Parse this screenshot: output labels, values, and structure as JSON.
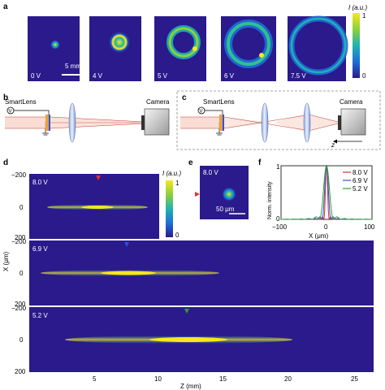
{
  "panel_a": {
    "letter": "a",
    "colorbar": {
      "label": "I (a.u.)",
      "max_tick": "1",
      "min_tick": "0"
    },
    "beam_frames": [
      {
        "voltage": "0 V"
      },
      {
        "voltage": "4 V"
      },
      {
        "voltage": "5 V"
      },
      {
        "voltage": "6 V"
      },
      {
        "voltage": "7.5 V"
      }
    ],
    "scalebar_label": "5 mm"
  },
  "panel_b": {
    "letter": "b",
    "lens_label": "SmartLens",
    "camera_label": "Camera",
    "source_symbol": "V"
  },
  "panel_c": {
    "letter": "c",
    "lens_label": "SmartLens",
    "camera_label": "Camera",
    "axis_label": "z",
    "source_symbol": "V"
  },
  "panel_d": {
    "letter": "d",
    "colorbar": {
      "label": "I (a.u.)",
      "max_tick": "1",
      "min_tick": "0"
    },
    "x_axis_label": "X (μm)",
    "z_axis_label": "Z (mm)",
    "z_ticks": [
      "5",
      "10",
      "15",
      "20",
      "25"
    ],
    "x_ticks": [
      "−200",
      "0",
      "200"
    ],
    "rows": [
      {
        "voltage": "8.0 V",
        "marker_color": "#e03030"
      },
      {
        "voltage": "6.9 V",
        "marker_color": "#3050e0"
      },
      {
        "voltage": "5.2 V",
        "marker_color": "#30a030"
      }
    ]
  },
  "panel_e": {
    "letter": "e",
    "voltage": "8.0 V",
    "scalebar_label": "50 μm",
    "marker_color": "#e03030"
  },
  "panel_f": {
    "letter": "f",
    "chart_data": {
      "type": "line",
      "title": "",
      "xlabel": "X (μm)",
      "ylabel": "Norm. intensity",
      "xlim": [
        -100,
        100
      ],
      "ylim": [
        0,
        1
      ],
      "x_ticks": [
        "−100",
        "0",
        "100"
      ],
      "y_ticks": [
        "0",
        "1"
      ],
      "legend_position": "top-right",
      "series": [
        {
          "name": "8.0 V",
          "color": "#e03030",
          "width_um": 6
        },
        {
          "name": "6.9 V",
          "color": "#3050e0",
          "width_um": 10
        },
        {
          "name": "5.2 V",
          "color": "#30a030",
          "width_um": 16
        }
      ]
    }
  }
}
